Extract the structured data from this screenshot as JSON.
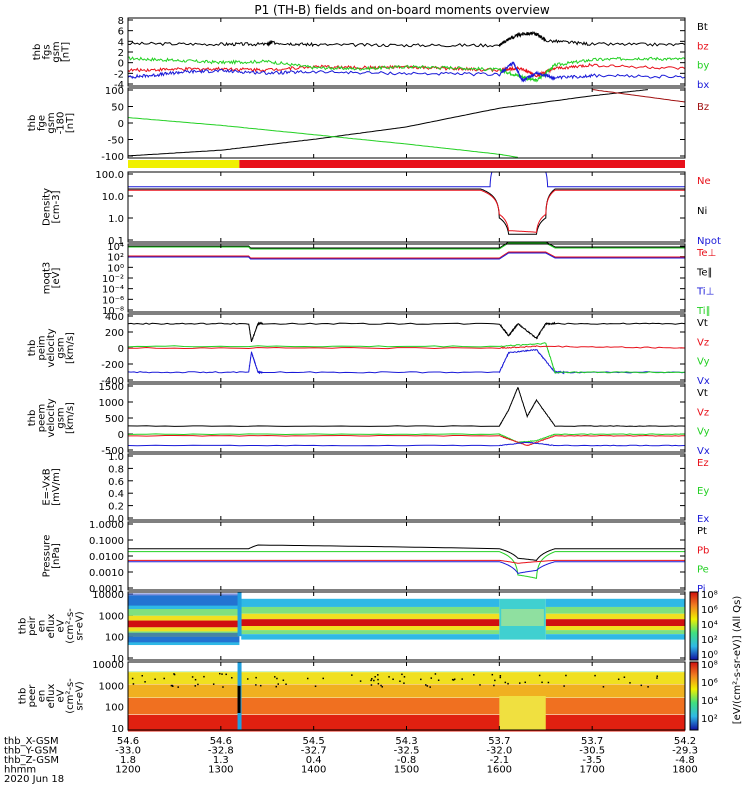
{
  "title": "P1 (TH-B) fields and on-board moments overview",
  "colors": {
    "black": "#000000",
    "red": "#e8101a",
    "green": "#22d022",
    "blue": "#1a1ad8",
    "darkred": "#a01010",
    "yellow": "#f0f000"
  },
  "chart_data": [
    {
      "id": "fgs",
      "type": "line",
      "ylabel": [
        "thb",
        "fgs",
        "gsm",
        "[nT]"
      ],
      "yticks": [
        "8",
        "6",
        "4",
        "2",
        "0",
        "-2",
        "-4"
      ],
      "ylim": [
        -4.5,
        8.5
      ],
      "legend": [
        {
          "name": "Bt",
          "color": "black"
        },
        {
          "name": "bz",
          "color": "red"
        },
        {
          "name": "by",
          "color": "green"
        },
        {
          "name": "bx",
          "color": "blue"
        }
      ],
      "series": [
        {
          "name": "Bt",
          "color": "black",
          "x": [
            1200,
            1300,
            1350,
            1355,
            1400,
            1500,
            1600,
            1610,
            1625,
            1640,
            1650,
            1700,
            1800
          ],
          "y": [
            3.6,
            3.5,
            3.5,
            3.8,
            3.4,
            3.3,
            3.3,
            4.5,
            5.5,
            5.5,
            4.2,
            3.5,
            3.4
          ]
        },
        {
          "name": "bz",
          "color": "red",
          "x": [
            1200,
            1250,
            1300,
            1350,
            1400,
            1450,
            1500,
            1550,
            1600,
            1620,
            1640,
            1660,
            1700,
            1800
          ],
          "y": [
            -1.5,
            -1.3,
            -1.2,
            -1.4,
            -0.8,
            -1.0,
            -0.9,
            -1.2,
            -1.5,
            -1.0,
            -2.5,
            -1.2,
            -0.5,
            -1.2
          ]
        },
        {
          "name": "by",
          "color": "green",
          "x": [
            1200,
            1250,
            1300,
            1350,
            1400,
            1450,
            1500,
            1550,
            1600,
            1620,
            1640,
            1660,
            1700,
            1750,
            1800
          ],
          "y": [
            0.8,
            0.4,
            0.0,
            0.2,
            -1.0,
            -1.2,
            -0.8,
            -1.0,
            -1.4,
            -2.5,
            -3.5,
            -0.5,
            0.5,
            0.8,
            0.6
          ]
        },
        {
          "name": "bx",
          "color": "blue",
          "x": [
            1200,
            1230,
            1260,
            1300,
            1350,
            1400,
            1500,
            1600,
            1615,
            1625,
            1640,
            1660,
            1700,
            1800
          ],
          "y": [
            -2.8,
            -2.4,
            -1.8,
            -1.6,
            -2.0,
            -1.8,
            -2.1,
            -2.3,
            0.0,
            -3.5,
            -2.0,
            -3.0,
            -2.5,
            -2.8
          ]
        }
      ]
    },
    {
      "id": "fge_180",
      "type": "line",
      "ylabel": [
        "thb",
        "fge",
        "gsm",
        "-180",
        "[nT]"
      ],
      "yticks": [
        "100",
        "50",
        "0",
        "-50",
        "-100"
      ],
      "ylim": [
        -120,
        105
      ],
      "legend": [
        {
          "name": "Bz",
          "color": "darkred"
        }
      ],
      "series": [
        {
          "name": "Bt",
          "color": "black",
          "x": [
            1200,
            1300,
            1400,
            1500,
            1600,
            1700,
            1760
          ],
          "y": [
            -113,
            -95,
            -60,
            -20,
            40,
            80,
            100
          ]
        },
        {
          "name": "by",
          "color": "green",
          "x": [
            1200,
            1300,
            1400,
            1500,
            1600,
            1620
          ],
          "y": [
            10,
            -15,
            -45,
            -75,
            -108,
            -118
          ]
        },
        {
          "name": "Bz",
          "color": "darkred",
          "x": [
            1700,
            1800
          ],
          "y": [
            100,
            60
          ]
        }
      ]
    },
    {
      "id": "mode_bar",
      "type": "bar",
      "segments": [
        {
          "from": 1200,
          "to": 1320,
          "color": "yellow"
        },
        {
          "from": 1320,
          "to": 1800,
          "color": "red"
        }
      ]
    },
    {
      "id": "density",
      "type": "line",
      "ylabel": [
        "Density",
        "[cm-3]"
      ],
      "yticks": [
        "100.0",
        "10.0",
        "1.0",
        "0.1"
      ],
      "log": true,
      "ylim": [
        0.01,
        200
      ],
      "legend": [
        {
          "name": "Ne",
          "color": "red"
        },
        {
          "name": "Ni",
          "color": "black"
        },
        {
          "name": "Npot",
          "color": "blue"
        }
      ],
      "series": [
        {
          "name": "Npot",
          "color": "blue",
          "x": [
            1200,
            1590,
            1592,
            1650,
            1652,
            1800
          ],
          "y": [
            25,
            25,
            200,
            200,
            25,
            25
          ]
        },
        {
          "name": "Ni",
          "color": "black",
          "x": [
            1200,
            1580,
            1600,
            1610,
            1640,
            1650,
            1660,
            1800
          ],
          "y": [
            18,
            18,
            0.3,
            0.03,
            0.03,
            0.3,
            18,
            18
          ]
        },
        {
          "name": "Ne",
          "color": "red",
          "x": [
            1200,
            1580,
            1600,
            1610,
            1640,
            1650,
            1660,
            1800
          ],
          "y": [
            15,
            15,
            0.5,
            0.05,
            0.04,
            0.5,
            15,
            15
          ]
        }
      ]
    },
    {
      "id": "temp",
      "type": "line",
      "ylabel": [
        "moqt3",
        "[eV]"
      ],
      "yticks": [
        "10⁴",
        "10²",
        "10⁰",
        "10⁻²",
        "10⁻⁴",
        "10⁻⁶",
        "10⁻⁸"
      ],
      "log": true,
      "legend": [
        {
          "name": "Te⊥",
          "color": "red"
        },
        {
          "name": "Te∥",
          "color": "black"
        },
        {
          "name": "Ti⊥",
          "color": "blue"
        },
        {
          "name": "Ti∥",
          "color": "green"
        }
      ]
    },
    {
      "id": "peim",
      "type": "line",
      "ylabel": [
        "thb",
        "peim",
        "velocity",
        "gsm",
        "[km/s]"
      ],
      "yticks": [
        "400",
        "200",
        "0",
        "-200",
        "-400"
      ],
      "ylim": [
        -420,
        420
      ],
      "legend": [
        {
          "name": "Vt",
          "color": "black"
        },
        {
          "name": "Vz",
          "color": "red"
        },
        {
          "name": "Vy",
          "color": "green"
        },
        {
          "name": "Vx",
          "color": "blue"
        }
      ],
      "series": [
        {
          "name": "Vt",
          "color": "black",
          "x": [
            1200,
            1330,
            1333,
            1340,
            1345,
            1600,
            1610,
            1620,
            1640,
            1650,
            1660,
            1800
          ],
          "y": [
            300,
            300,
            80,
            300,
            300,
            300,
            150,
            300,
            120,
            300,
            300,
            300
          ]
        },
        {
          "name": "Vx",
          "color": "blue",
          "x": [
            1200,
            1330,
            1333,
            1340,
            1345,
            1600,
            1610,
            1640,
            1660,
            1670,
            1800
          ],
          "y": [
            -300,
            -300,
            -50,
            -300,
            -300,
            -300,
            -60,
            -20,
            -300,
            -300,
            -300
          ]
        },
        {
          "name": "Vy",
          "color": "green",
          "x": [
            1200,
            1600,
            1650,
            1660,
            1800
          ],
          "y": [
            20,
            20,
            60,
            -300,
            -300
          ]
        },
        {
          "name": "Vz",
          "color": "red",
          "x": [
            1200,
            1600,
            1640,
            1800
          ],
          "y": [
            0,
            0,
            20,
            0
          ]
        }
      ]
    },
    {
      "id": "peem",
      "type": "line",
      "ylabel": [
        "thb",
        "peem",
        "velocity",
        "gsm",
        "[km/s]"
      ],
      "yticks": [
        "1500",
        "1000",
        "500",
        "0",
        "-500"
      ],
      "ylim": [
        -500,
        1600
      ],
      "legend": [
        {
          "name": "Vt",
          "color": "black"
        },
        {
          "name": "Vz",
          "color": "red"
        },
        {
          "name": "Vy",
          "color": "green"
        },
        {
          "name": "Vx",
          "color": "blue"
        }
      ],
      "series": [
        {
          "name": "Vt",
          "color": "black",
          "x": [
            1200,
            1600,
            1610,
            1620,
            1630,
            1640,
            1660,
            1800
          ],
          "y": [
            300,
            300,
            800,
            1500,
            600,
            1100,
            300,
            300
          ]
        },
        {
          "name": "Vy",
          "color": "green",
          "x": [
            1200,
            1600,
            1620,
            1640,
            1660,
            1800
          ],
          "y": [
            50,
            50,
            -200,
            -150,
            50,
            50
          ]
        },
        {
          "name": "Vz",
          "color": "red",
          "x": [
            1200,
            1600,
            1630,
            1660,
            1800
          ],
          "y": [
            0,
            0,
            -300,
            0,
            0
          ]
        },
        {
          "name": "Vx",
          "color": "blue",
          "x": [
            1200,
            1600,
            1630,
            1660,
            1800
          ],
          "y": [
            -300,
            -300,
            -200,
            -300,
            -300
          ]
        }
      ]
    },
    {
      "id": "efield",
      "type": "line",
      "ylabel": [
        "E=-VxB",
        "[mV/m]"
      ],
      "yticks": [
        "1.0",
        "0.8",
        "0.6",
        "0.4",
        "0.2",
        "0.0"
      ],
      "ylim": [
        0,
        1
      ],
      "legend": [
        {
          "name": "Ez",
          "color": "red"
        },
        {
          "name": "Ey",
          "color": "green"
        },
        {
          "name": "Ex",
          "color": "blue"
        }
      ]
    },
    {
      "id": "pressure",
      "type": "line",
      "ylabel": [
        "Pressure",
        "[nPa]"
      ],
      "yticks": [
        "1.0000",
        "0.1000",
        "0.0100",
        "0.0010",
        "0.0001"
      ],
      "log": true,
      "ylim": [
        0.0001,
        1.2
      ],
      "legend": [
        {
          "name": "Pt",
          "color": "black"
        },
        {
          "name": "Pb",
          "color": "red"
        },
        {
          "name": "Pe",
          "color": "green"
        },
        {
          "name": "Pi",
          "color": "blue"
        }
      ],
      "series": [
        {
          "name": "Pt",
          "color": "black",
          "x": [
            1200,
            1330,
            1340,
            1600,
            1620,
            1640,
            1660,
            1800
          ],
          "y": [
            0.03,
            0.03,
            0.05,
            0.03,
            0.008,
            0.006,
            0.03,
            0.03
          ]
        },
        {
          "name": "Pe",
          "color": "green",
          "x": [
            1200,
            1600,
            1620,
            1640,
            1660,
            1800
          ],
          "y": [
            0.02,
            0.02,
            0.0008,
            0.0005,
            0.02,
            0.02
          ]
        },
        {
          "name": "Pb",
          "color": "red",
          "x": [
            1200,
            1600,
            1620,
            1640,
            1660,
            1800
          ],
          "y": [
            0.006,
            0.006,
            0.004,
            0.005,
            0.006,
            0.006
          ]
        },
        {
          "name": "Pi",
          "color": "blue",
          "x": [
            1200,
            1600,
            1620,
            1640,
            1660,
            1800
          ],
          "y": [
            0.005,
            0.005,
            0.001,
            0.0015,
            0.005,
            0.005
          ]
        }
      ]
    },
    {
      "id": "peir_spec",
      "type": "heatmap",
      "ylabel": [
        "thb",
        "peir",
        "en",
        "eflux",
        "eV",
        "(cm²-s-",
        "sr-eV)"
      ],
      "yticks": [
        "10000",
        "1000",
        "100",
        "10"
      ]
    },
    {
      "id": "peer_spec",
      "type": "heatmap",
      "ylabel": [
        "thb",
        "peer",
        "en",
        "eflux",
        "eV",
        "(cm²-s-",
        "sr-eV)"
      ],
      "yticks": [
        "10000",
        "1000",
        "100",
        "10"
      ]
    }
  ],
  "colorbar": {
    "label": "[eV/(cm²-s-sr-eV)] (All Qs)",
    "top_ticks": [
      "10⁸",
      "10⁶",
      "10⁴",
      "10²",
      "10⁰"
    ],
    "bottom_ticks": [
      "10⁸",
      "10⁶",
      "10⁴",
      "10²"
    ]
  },
  "xaxis": {
    "rows": [
      {
        "label": "thb_X-GSM",
        "values": [
          "54.6",
          "54.6",
          "54.5",
          "54.3",
          "53.7",
          "53.7",
          "54.2"
        ]
      },
      {
        "label": "thb_Y-GSM",
        "values": [
          "-33.0",
          "-32.8",
          "-32.7",
          "-32.5",
          "-32.0",
          "-30.5",
          "-29.3"
        ]
      },
      {
        "label": "thb_Z-GSM",
        "values": [
          "1.8",
          "1.3",
          "0.4",
          "-0.8",
          "-2.1",
          "-3.5",
          "-4.8"
        ]
      },
      {
        "label": "hhmm",
        "values": [
          "1200",
          "1300",
          "1400",
          "1500",
          "1600",
          "1700",
          "1800"
        ]
      }
    ],
    "date": "2020 Jun 18",
    "ticks": [
      1200,
      1300,
      1400,
      1500,
      1600,
      1700,
      1800
    ]
  }
}
